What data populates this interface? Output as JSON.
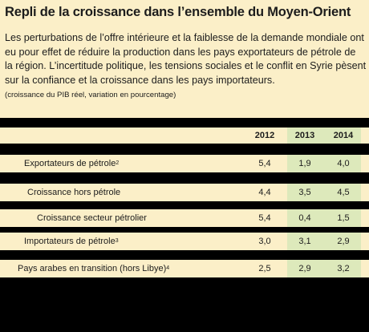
{
  "title": "Repli de la croissance dans l’ensemble du Moyen-Orient",
  "intro_lines": [
    "Les perturbations de l’offre intérieure et la faiblesse de la demande mondiale ont",
    "eu pour effet de réduire la production dans les pays exportateurs de pétrole de",
    "la région. L’incertitude politique, les tensions sociales et le conflit en Syrie pèsent",
    "sur la confiance et la croissance dans les pays importateurs."
  ],
  "unit_note": "(croissance du PIB réel, variation en pourcentage)",
  "table": {
    "years": [
      "2012",
      "2013",
      "2014"
    ],
    "rows": [
      {
        "label": "Exportateurs de pétrole",
        "footnote": "2",
        "values": [
          "5,4",
          "1,9",
          "4,0"
        ]
      },
      {
        "label": "Croissance hors pétrole",
        "footnote": "",
        "values": [
          "4,4",
          "3,5",
          "4,5"
        ]
      },
      {
        "label": "Croissance secteur pétrolier",
        "footnote": "",
        "values": [
          "5,4",
          "0,4",
          "1,5"
        ]
      },
      {
        "label": "Importateurs de pétrole",
        "footnote": "3",
        "values": [
          "3,0",
          "3,1",
          "2,9"
        ]
      },
      {
        "label": "Pays arabes en transition (hors Libye)",
        "footnote": "4",
        "values": [
          "2,5",
          "2,9",
          "3,2"
        ]
      }
    ]
  },
  "colors": {
    "background": "#fbefc8",
    "projection_highlight": "#dde9bb",
    "table_bars": "#000000"
  }
}
